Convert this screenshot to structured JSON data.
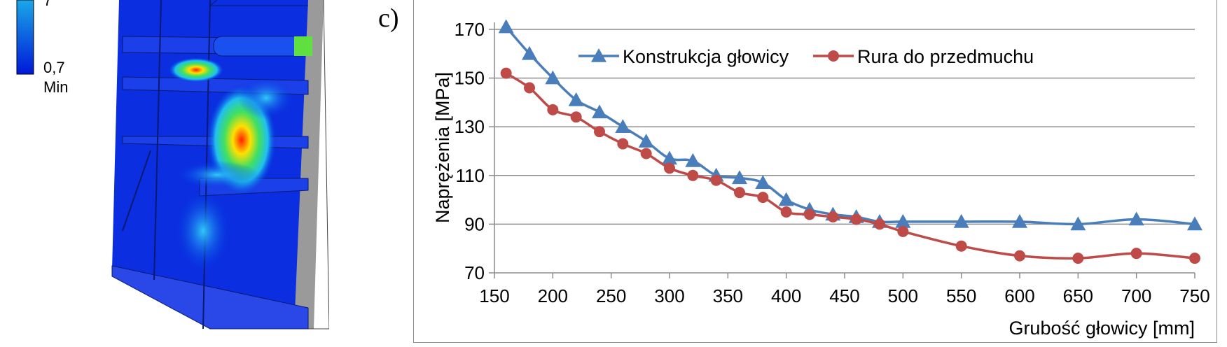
{
  "panel_letter": "c)",
  "fem_legend": {
    "min_value": "0,7",
    "min_label": "Min",
    "top_value_fragment": "7"
  },
  "colors": {
    "series1": "#4a7ebb",
    "series2": "#be4b48",
    "grid": "#8c8c8c"
  },
  "chart_data": {
    "type": "line",
    "xlabel": "Grubość głowicy [mm]",
    "ylabel": "Naprężenia [MPa]",
    "xlim": [
      150,
      750
    ],
    "ylim": [
      70,
      170
    ],
    "x_ticks": [
      150,
      200,
      250,
      300,
      350,
      400,
      450,
      500,
      550,
      600,
      650,
      700,
      750
    ],
    "y_ticks": [
      70,
      90,
      110,
      130,
      150,
      170
    ],
    "grid": true,
    "legend_position": "top-right",
    "series": [
      {
        "name": "Konstrukcja głowicy",
        "marker": "triangle",
        "x": [
          160,
          180,
          200,
          220,
          240,
          260,
          280,
          300,
          320,
          340,
          360,
          380,
          400,
          420,
          440,
          460,
          480,
          500,
          550,
          600,
          650,
          700,
          750
        ],
        "y": [
          171,
          160,
          150,
          141,
          136,
          130,
          124,
          117,
          116,
          110,
          109,
          107,
          100,
          96,
          94,
          93,
          91,
          91,
          91,
          91,
          90,
          92,
          90
        ]
      },
      {
        "name": "Rura do przedmuchu",
        "marker": "circle",
        "x": [
          160,
          180,
          200,
          220,
          240,
          260,
          280,
          300,
          320,
          340,
          360,
          380,
          400,
          420,
          440,
          460,
          480,
          500,
          550,
          600,
          650,
          700,
          750
        ],
        "y": [
          152,
          146,
          137,
          134,
          128,
          123,
          119,
          113,
          110,
          108,
          103,
          101,
          95,
          94,
          93,
          92,
          90,
          87,
          81,
          77,
          76,
          78,
          76
        ]
      }
    ]
  }
}
